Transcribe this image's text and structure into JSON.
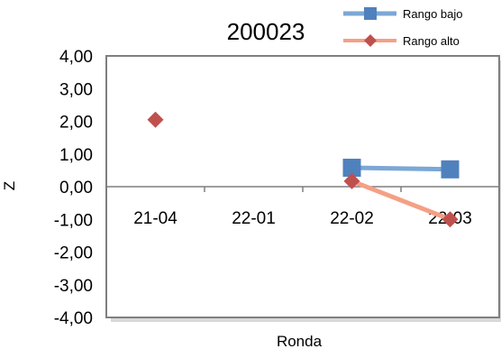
{
  "chart_data": {
    "type": "line",
    "title": "200023",
    "xlabel": "Ronda",
    "ylabel": "Z",
    "categories": [
      "21-04",
      "22-01",
      "22-02",
      "22-03"
    ],
    "ylim": [
      -4,
      4
    ],
    "yticks": [
      "4,00",
      "3,00",
      "2,00",
      "1,00",
      "0,00",
      "-1,00",
      "-2,00",
      "-3,00",
      "-4,00"
    ],
    "ytick_values": [
      4,
      3,
      2,
      1,
      0,
      -1,
      -2,
      -3,
      -4
    ],
    "grid": false,
    "legend": "top-right",
    "series": [
      {
        "name": "Rango bajo",
        "values": [
          null,
          null,
          0.58,
          0.53
        ],
        "color": "#4f81bd",
        "line_color": "#7ca7d6",
        "marker": "square"
      },
      {
        "name": "Rango alto",
        "values": [
          2.05,
          null,
          0.17,
          -1.0
        ],
        "color": "#c0504d",
        "line_color": "#f4a085",
        "marker": "diamond"
      }
    ]
  }
}
